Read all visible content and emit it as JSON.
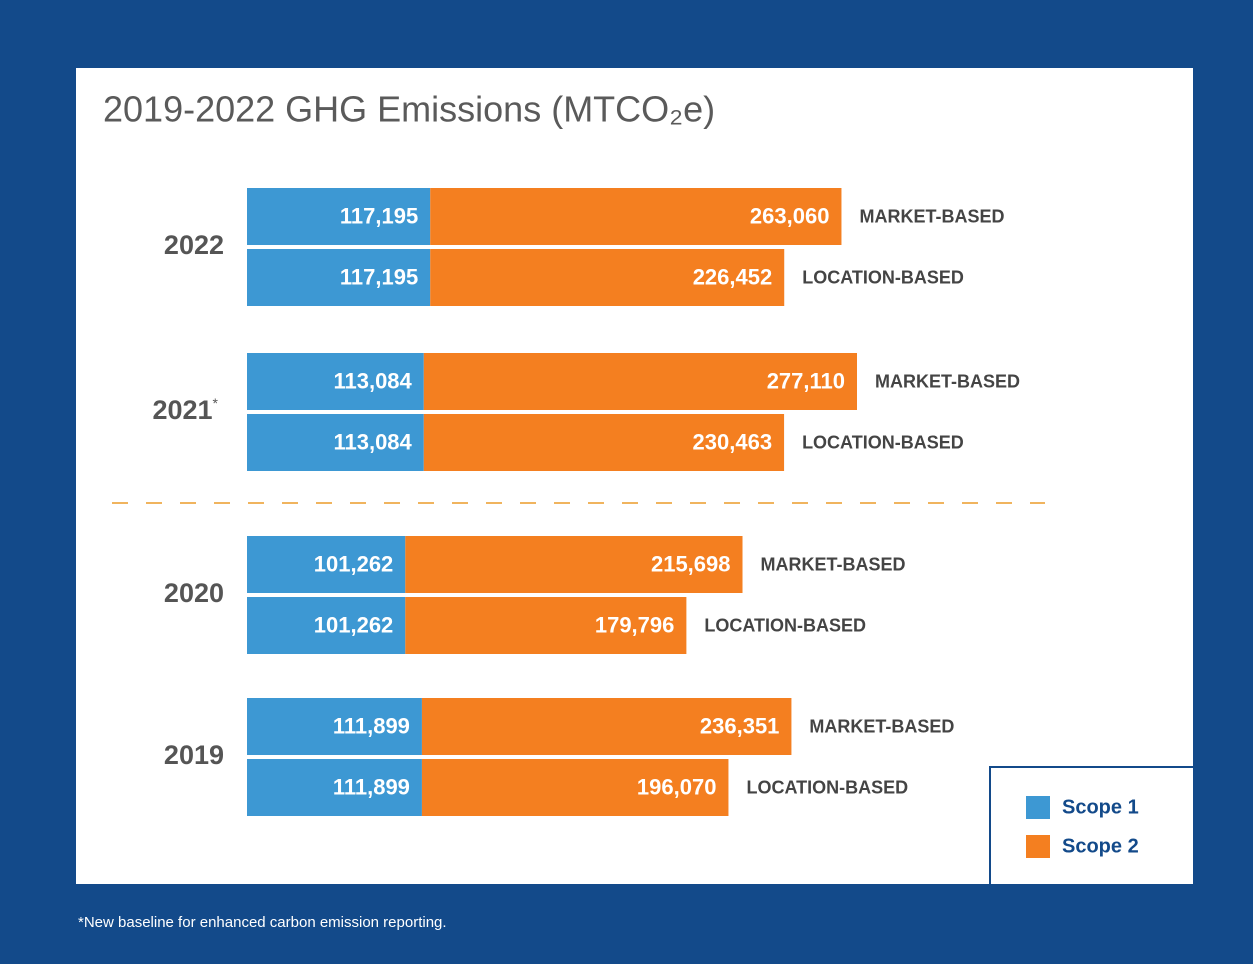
{
  "chart_data": {
    "type": "stacked-bar-horizontal",
    "title": "2019-2022 GHG Emissions (MTCO₂e)",
    "categories": [
      "2022",
      "2021",
      "2020",
      "2019"
    ],
    "category_notes": [
      null,
      "*",
      null,
      null
    ],
    "bases": [
      "MARKET-BASED",
      "LOCATION-BASED"
    ],
    "series": [
      {
        "name": "Scope 1",
        "color": "#3d98d3",
        "values": [
          [
            117195,
            117195
          ],
          [
            113084,
            113084
          ],
          [
            101262,
            101262
          ],
          [
            111899,
            111899
          ]
        ],
        "value_labels": [
          [
            "117,195",
            "117,195"
          ],
          [
            "113,084",
            "113,084"
          ],
          [
            "101,262",
            "101,262"
          ],
          [
            "111,899",
            "111,899"
          ]
        ]
      },
      {
        "name": "Scope 2",
        "color": "#f47f20",
        "values": [
          [
            263060,
            226452
          ],
          [
            277110,
            230463
          ],
          [
            215698,
            179796
          ],
          [
            236351,
            196070
          ]
        ],
        "value_labels": [
          [
            "263,060",
            "226,452"
          ],
          [
            "277,110",
            "230,463"
          ],
          [
            "215,698",
            "179,796"
          ],
          [
            "236,351",
            "196,070"
          ]
        ]
      }
    ],
    "footnote": "*New baseline for enhanced carbon emission reporting."
  }
}
